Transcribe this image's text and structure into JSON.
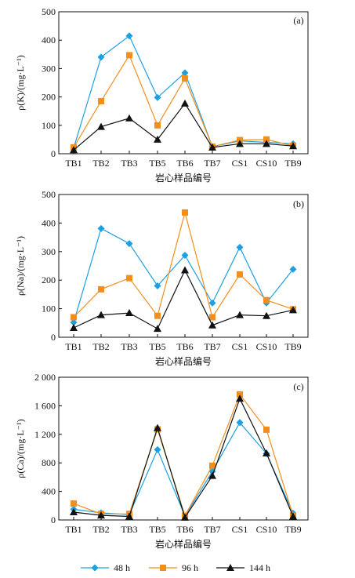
{
  "chart_data": [
    {
      "type": "line",
      "panel_label": "(a)",
      "ylabel": "ρ(K)/(mg·L⁻¹)",
      "xlabel": "岩心样品编号",
      "categories": [
        "TB1",
        "TB2",
        "TB3",
        "TB5",
        "TB6",
        "TB7",
        "CS1",
        "CS10",
        "TB9"
      ],
      "ylim": [
        0,
        500
      ],
      "yticks": [
        0,
        100,
        200,
        300,
        400,
        500
      ],
      "ytick_labels": [
        "0",
        "100",
        "200",
        "300",
        "400",
        "500"
      ],
      "grid": false,
      "series": [
        {
          "name": "48 h",
          "color": "#1ba1e2",
          "marker": "diamond",
          "values": [
            20,
            340,
            415,
            198,
            285,
            25,
            45,
            40,
            35
          ]
        },
        {
          "name": "96 h",
          "color": "#f28e1c",
          "marker": "square",
          "values": [
            22,
            185,
            347,
            100,
            265,
            25,
            48,
            50,
            28
          ]
        },
        {
          "name": "144 h",
          "color": "#111111",
          "marker": "triangle",
          "values": [
            13,
            95,
            125,
            50,
            177,
            22,
            35,
            35,
            27
          ]
        }
      ]
    },
    {
      "type": "line",
      "panel_label": "(b)",
      "ylabel": "ρ(Na)/(mg·L⁻¹)",
      "xlabel": "岩心样品编号",
      "categories": [
        "TB1",
        "TB2",
        "TB3",
        "TB5",
        "TB6",
        "TB7",
        "CS1",
        "CS10",
        "TB9"
      ],
      "ylim": [
        0,
        500
      ],
      "yticks": [
        0,
        100,
        200,
        300,
        400,
        500
      ],
      "ytick_labels": [
        "0",
        "100",
        "200",
        "300",
        "400",
        "500"
      ],
      "grid": false,
      "series": [
        {
          "name": "48 h",
          "color": "#1ba1e2",
          "marker": "diamond",
          "values": [
            52,
            381,
            328,
            180,
            287,
            120,
            315,
            120,
            238
          ]
        },
        {
          "name": "96 h",
          "color": "#f28e1c",
          "marker": "square",
          "values": [
            70,
            168,
            207,
            75,
            437,
            70,
            220,
            130,
            98
          ]
        },
        {
          "name": "144 h",
          "color": "#111111",
          "marker": "triangle",
          "values": [
            33,
            78,
            85,
            30,
            235,
            42,
            78,
            75,
            95
          ]
        }
      ]
    },
    {
      "type": "line",
      "panel_label": "(c)",
      "ylabel": "ρ(Ca)/(mg·L⁻¹)",
      "xlabel": "岩心样品编号",
      "categories": [
        "TB1",
        "TB2",
        "TB3",
        "TB5",
        "TB6",
        "TB7",
        "CS1",
        "CS10",
        "TB9"
      ],
      "ylim": [
        0,
        2000
      ],
      "yticks": [
        0,
        400,
        800,
        1200,
        1600,
        2000
      ],
      "ytick_labels": [
        "0",
        "400",
        "800",
        "1 200",
        "1 600",
        "2 000"
      ],
      "grid": false,
      "series": [
        {
          "name": "48 h",
          "color": "#1ba1e2",
          "marker": "diamond",
          "values": [
            150,
            100,
            75,
            985,
            55,
            680,
            1365,
            930,
            95
          ]
        },
        {
          "name": "96 h",
          "color": "#f28e1c",
          "marker": "square",
          "values": [
            230,
            85,
            85,
            1270,
            60,
            760,
            1760,
            1265,
            60
          ]
        },
        {
          "name": "144 h",
          "color": "#111111",
          "marker": "triangle",
          "values": [
            110,
            65,
            50,
            1290,
            35,
            620,
            1700,
            935,
            50
          ]
        }
      ]
    }
  ],
  "legend": {
    "placement": "bottom",
    "items": [
      {
        "label": "48 h",
        "color": "#1ba1e2",
        "marker": "diamond"
      },
      {
        "label": "96 h",
        "color": "#f28e1c",
        "marker": "square"
      },
      {
        "label": "144 h",
        "color": "#111111",
        "marker": "triangle"
      }
    ]
  }
}
